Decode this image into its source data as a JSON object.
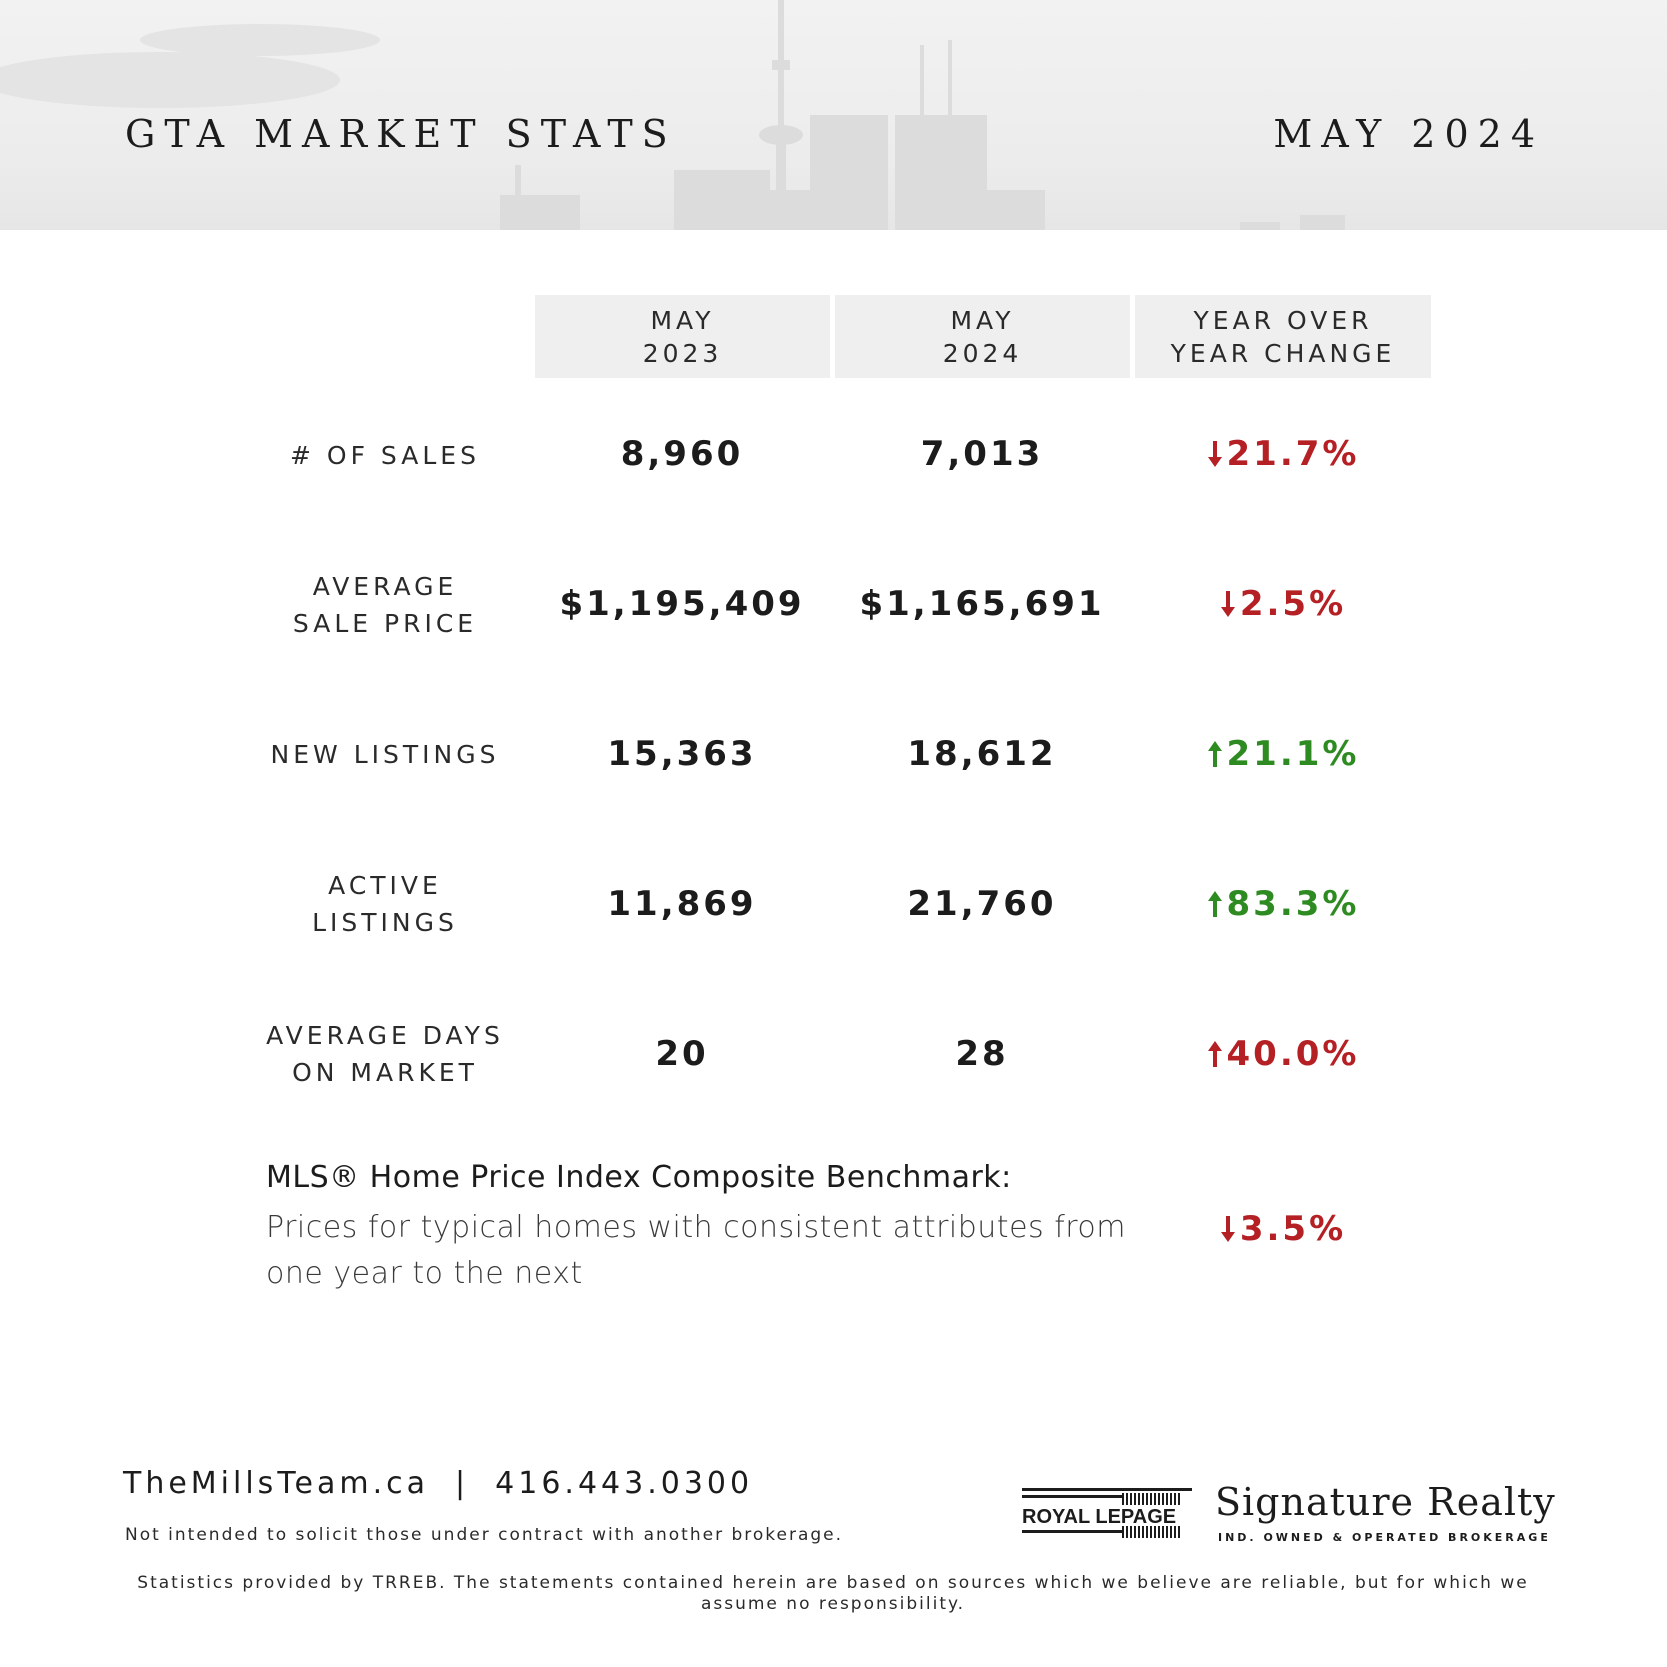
{
  "header": {
    "title": "GTA MARKET STATS",
    "period": "MAY 2024"
  },
  "columns": [
    "MAY\n2023",
    "MAY\n2024",
    "YEAR OVER\nYEAR CHANGE"
  ],
  "rows": [
    {
      "label": "# OF SALES",
      "may_2023": "8,960",
      "may_2024": "7,013",
      "change": "21.7%",
      "direction": "down",
      "color": "#b42024"
    },
    {
      "label": "AVERAGE\nSALE PRICE",
      "may_2023": "$1,195,409",
      "may_2024": "$1,165,691",
      "change": "2.5%",
      "direction": "down",
      "color": "#b42024"
    },
    {
      "label": "NEW LISTINGS",
      "may_2023": "15,363",
      "may_2024": "18,612",
      "change": "21.1%",
      "direction": "up",
      "color": "#2e8b22"
    },
    {
      "label": "ACTIVE\nLISTINGS",
      "may_2023": "11,869",
      "may_2024": "21,760",
      "change": "83.3%",
      "direction": "up",
      "color": "#2e8b22"
    },
    {
      "label": "AVERAGE DAYS\nON MARKET",
      "may_2023": "20",
      "may_2024": "28",
      "change": "40.0%",
      "direction": "up",
      "color": "#b42024"
    }
  ],
  "hpi": {
    "title": "MLS® Home Price Index Composite Benchmark:",
    "description": "Prices for typical homes with consistent attributes from one year to the next",
    "change": "3.5%",
    "direction": "down",
    "color": "#b42024"
  },
  "footer": {
    "website": "TheMillsTeam.ca",
    "separator": "|",
    "phone": "416.443.0300",
    "disclaimer_solicit": "Not intended to solicit those under contract with another brokerage.",
    "disclaimer_stats": "Statistics provided by TRREB. The statements contained herein are based on sources which we believe are reliable, but for which we assume no responsibility.",
    "brand_logo": "ROYAL LEPAGE",
    "brokerage_name": "Signature Realty",
    "brokerage_sub": "IND. OWNED & OPERATED BROKERAGE"
  }
}
